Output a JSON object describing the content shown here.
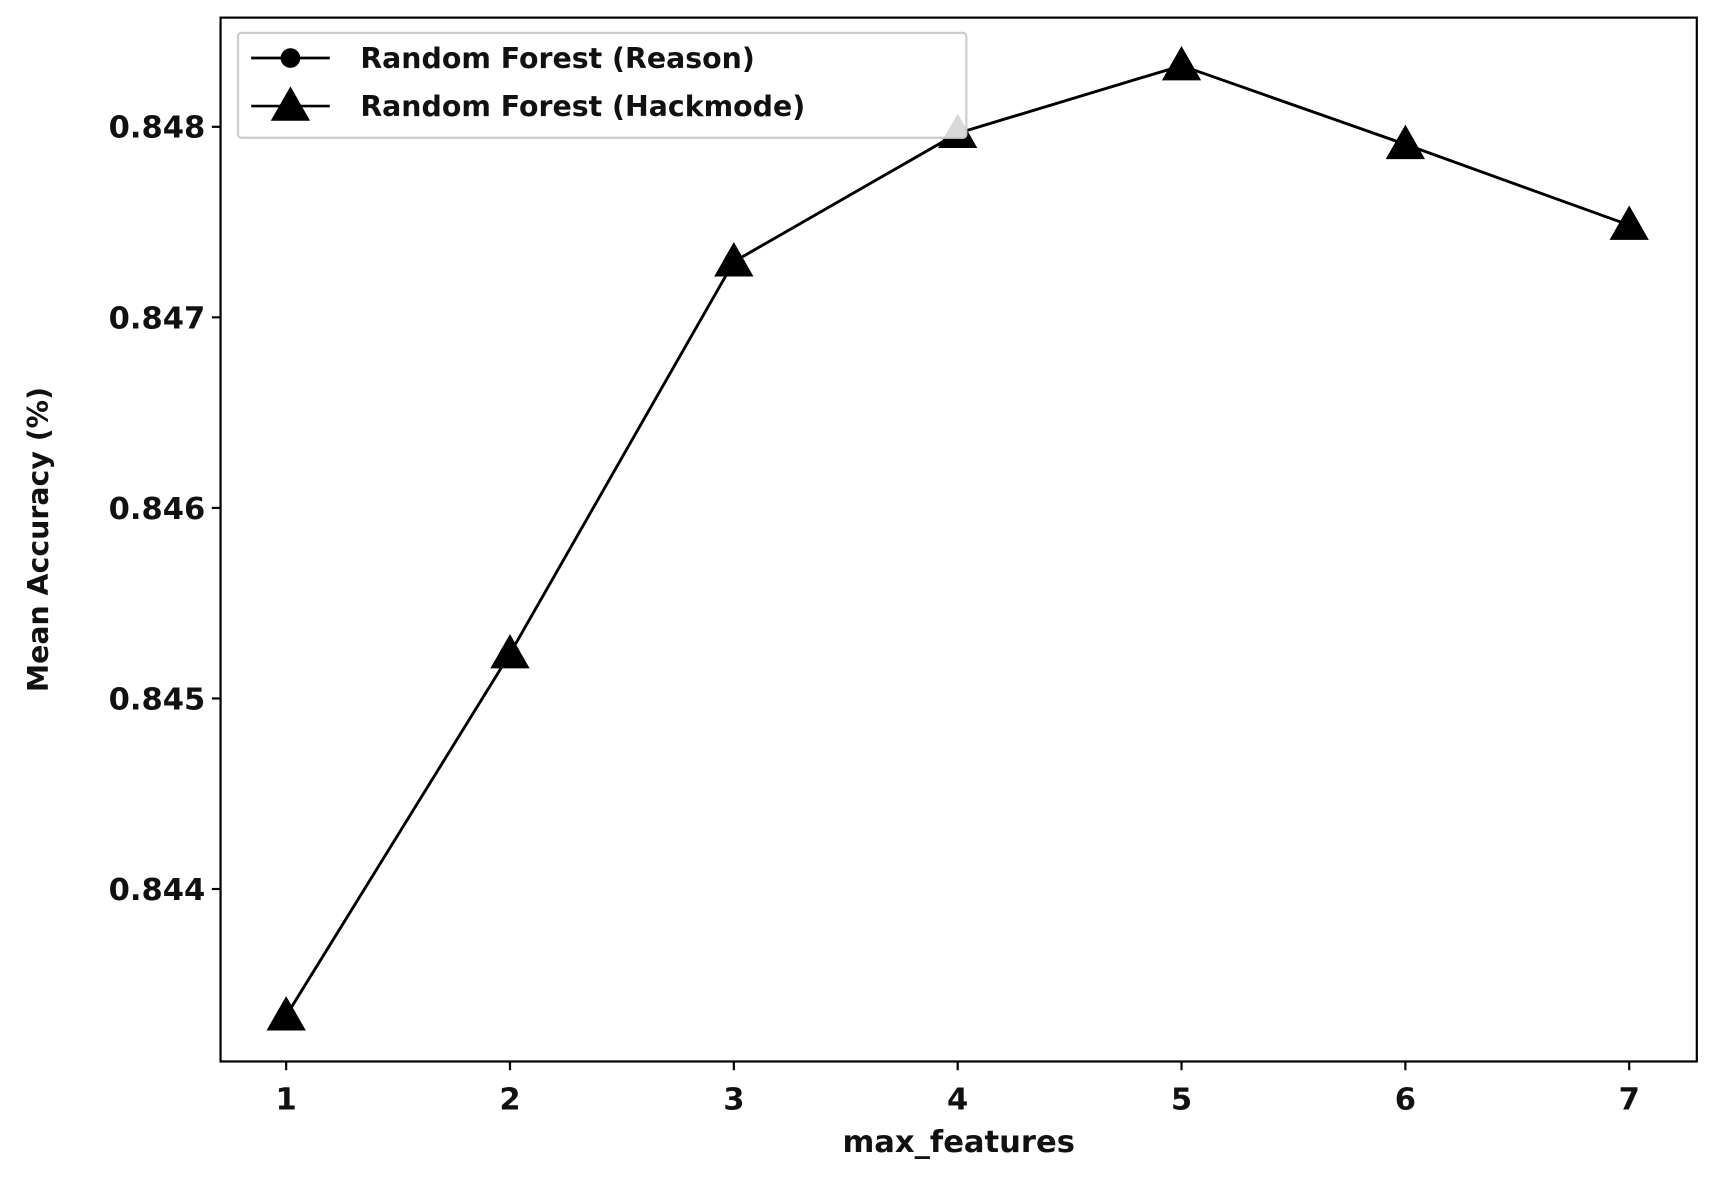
{
  "chart_data": {
    "type": "line",
    "xlabel": "max_features",
    "ylabel": "Mean Accuracy (%)",
    "x": [
      1,
      2,
      3,
      4,
      5,
      6,
      7
    ],
    "series": [
      {
        "name": "Random Forest (Reason)",
        "color": "#000000",
        "marker": "circle",
        "values": [
          0.843335,
          0.845235,
          0.847292,
          0.847966,
          0.848321,
          0.847908,
          0.847484
        ]
      },
      {
        "name": "Random Forest (Hackmode)",
        "color": "#000000",
        "marker": "triangle",
        "values": [
          0.843335,
          0.845235,
          0.847292,
          0.847966,
          0.848321,
          0.847908,
          0.847484
        ]
      }
    ],
    "xlim": [
      0.707,
      7.302
    ],
    "ylim": [
      0.843095,
      0.848573
    ],
    "xticks": [
      1,
      2,
      3,
      4,
      5,
      6,
      7
    ],
    "yticks": [
      0.844,
      0.845,
      0.846,
      0.847,
      0.848
    ],
    "grid": false,
    "legend": "upper left"
  }
}
